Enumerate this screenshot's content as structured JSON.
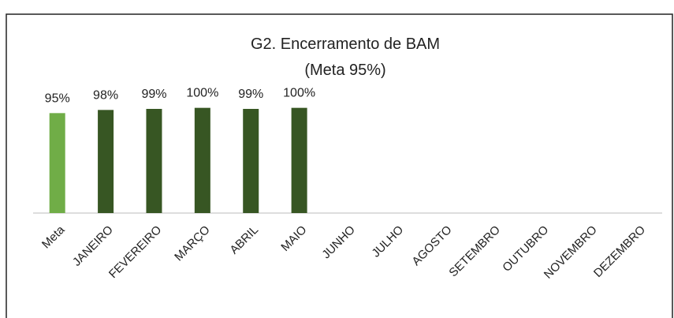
{
  "chart_data": {
    "type": "bar",
    "title": [
      "G2. Encerramento de BAM",
      "(Meta 95%)"
    ],
    "categories": [
      "Meta",
      "JANEIRO",
      "FEVEREIRO",
      "MARÇO",
      "ABRIL",
      "MAIO",
      "JUNHO",
      "JULHO",
      "AGOSTO",
      "SETEMBRO",
      "OUTUBRO",
      "NOVEMBRO",
      "DEZEMBRO"
    ],
    "values": [
      95,
      98,
      99,
      100,
      99,
      100,
      null,
      null,
      null,
      null,
      null,
      null,
      null
    ],
    "value_labels": [
      "95%",
      "98%",
      "99%",
      "100%",
      "99%",
      "100%",
      null,
      null,
      null,
      null,
      null,
      null,
      null
    ],
    "colors": [
      "#70ad47",
      "#375623",
      "#375623",
      "#375623",
      "#375623",
      "#375623",
      "#375623",
      "#375623",
      "#375623",
      "#375623",
      "#375623",
      "#375623",
      "#375623"
    ],
    "ylim": [
      0,
      120
    ]
  }
}
